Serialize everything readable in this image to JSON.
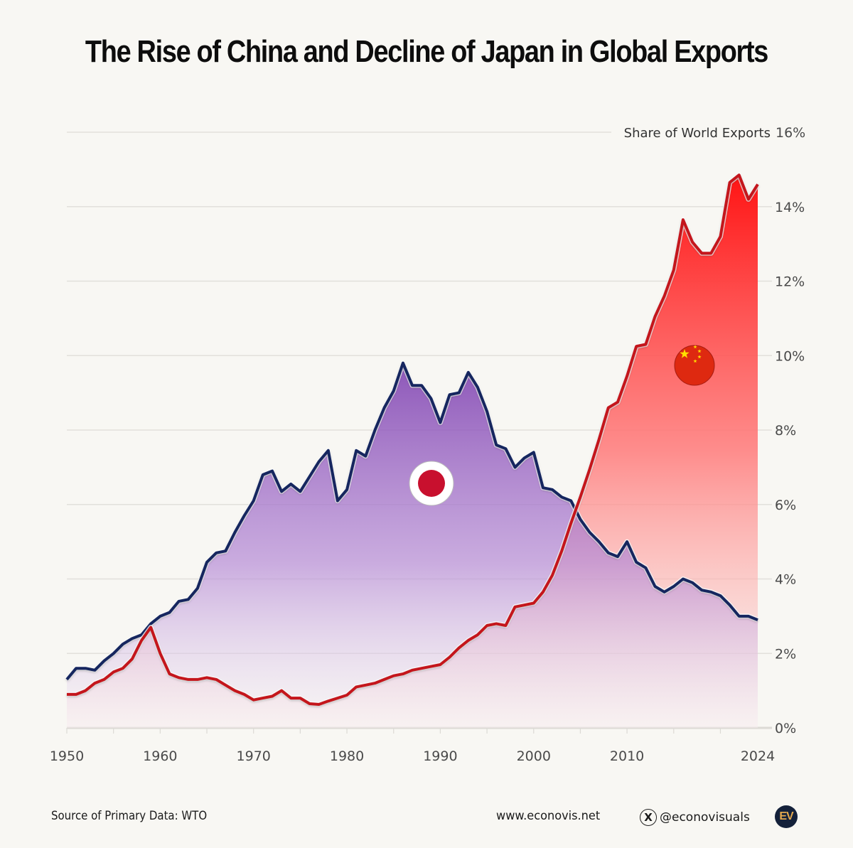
{
  "title": "The Rise of China and Decline of Japan in Global Exports",
  "footer": {
    "source": "Source of Primary Data: WTO",
    "website": "www.econovis.net",
    "x_icon": "x-logo-icon",
    "x_glyph": "X",
    "handle": "@econovisuals",
    "logo_text": "EV"
  },
  "colors": {
    "japan_line": "#13275e",
    "china_line": "#c4161c",
    "japan_fill_top": "#8a4fb8",
    "china_fill_top": "#ff1a1a",
    "background": "#f8f7f3"
  },
  "chart_data": {
    "type": "area",
    "title": "The Rise of China and Decline of Japan in Global Exports",
    "xlabel": "",
    "ylabel": "Share of World Exports",
    "y_axis_position": "right",
    "xlim": [
      1950,
      2024
    ],
    "ylim": [
      0,
      16
    ],
    "grid": true,
    "x_ticks": [
      "1950",
      "1960",
      "1970",
      "1980",
      "1990",
      "2000",
      "2010",
      "2024"
    ],
    "x_tick_values": [
      1950,
      1960,
      1970,
      1980,
      1990,
      2000,
      2010,
      2024
    ],
    "y_ticks": [
      "0%",
      "2%",
      "4%",
      "6%",
      "8%",
      "10%",
      "12%",
      "14%",
      "16%"
    ],
    "y_tick_values": [
      0,
      2,
      4,
      6,
      8,
      10,
      12,
      14,
      16
    ],
    "legend": "flag icons on areas (Japan flag on purple area, China flag on red area)",
    "x": [
      1950,
      1951,
      1952,
      1953,
      1954,
      1955,
      1956,
      1957,
      1958,
      1959,
      1960,
      1961,
      1962,
      1963,
      1964,
      1965,
      1966,
      1967,
      1968,
      1969,
      1970,
      1971,
      1972,
      1973,
      1974,
      1975,
      1976,
      1977,
      1978,
      1979,
      1980,
      1981,
      1982,
      1983,
      1984,
      1985,
      1986,
      1987,
      1988,
      1989,
      1990,
      1991,
      1992,
      1993,
      1994,
      1995,
      1996,
      1997,
      1998,
      1999,
      2000,
      2001,
      2002,
      2003,
      2004,
      2005,
      2006,
      2007,
      2008,
      2009,
      2010,
      2011,
      2012,
      2013,
      2014,
      2015,
      2016,
      2017,
      2018,
      2019,
      2020,
      2021,
      2022,
      2023,
      2024
    ],
    "series": [
      {
        "name": "Japan",
        "flag": "japan-flag-icon",
        "values": [
          1.3,
          1.6,
          1.6,
          1.55,
          1.8,
          2.0,
          2.25,
          2.4,
          2.5,
          2.8,
          3.0,
          3.1,
          3.4,
          3.45,
          3.75,
          4.45,
          4.7,
          4.75,
          5.25,
          5.7,
          6.1,
          6.8,
          6.9,
          6.35,
          6.55,
          6.35,
          6.75,
          7.15,
          7.45,
          6.1,
          6.4,
          7.45,
          7.3,
          8.0,
          8.6,
          9.05,
          9.8,
          9.2,
          9.2,
          8.85,
          8.2,
          8.95,
          9.0,
          9.55,
          9.15,
          8.5,
          7.6,
          7.5,
          7.0,
          7.25,
          7.4,
          6.45,
          6.4,
          6.2,
          6.1,
          5.6,
          5.25,
          5.0,
          4.7,
          4.6,
          5.0,
          4.45,
          4.3,
          3.8,
          3.65,
          3.8,
          4.0,
          3.9,
          3.7,
          3.65,
          3.55,
          3.3,
          3.0,
          3.0,
          2.9
        ]
      },
      {
        "name": "China",
        "flag": "china-flag-icon",
        "values": [
          0.9,
          0.9,
          1.0,
          1.2,
          1.3,
          1.5,
          1.6,
          1.85,
          2.35,
          2.7,
          2.0,
          1.45,
          1.35,
          1.3,
          1.3,
          1.35,
          1.3,
          1.15,
          1.0,
          0.9,
          0.75,
          0.8,
          0.85,
          1.0,
          0.8,
          0.8,
          0.65,
          0.63,
          0.72,
          0.8,
          0.88,
          1.1,
          1.15,
          1.2,
          1.3,
          1.4,
          1.45,
          1.55,
          1.6,
          1.65,
          1.7,
          1.9,
          2.15,
          2.35,
          2.5,
          2.75,
          2.8,
          2.75,
          3.25,
          3.3,
          3.35,
          3.65,
          4.1,
          4.75,
          5.5,
          6.2,
          6.95,
          7.75,
          8.6,
          8.75,
          9.45,
          10.25,
          10.3,
          11.05,
          11.6,
          12.3,
          13.65,
          13.05,
          12.75,
          12.75,
          13.2,
          14.65,
          14.85,
          14.2,
          14.6
        ]
      }
    ]
  }
}
